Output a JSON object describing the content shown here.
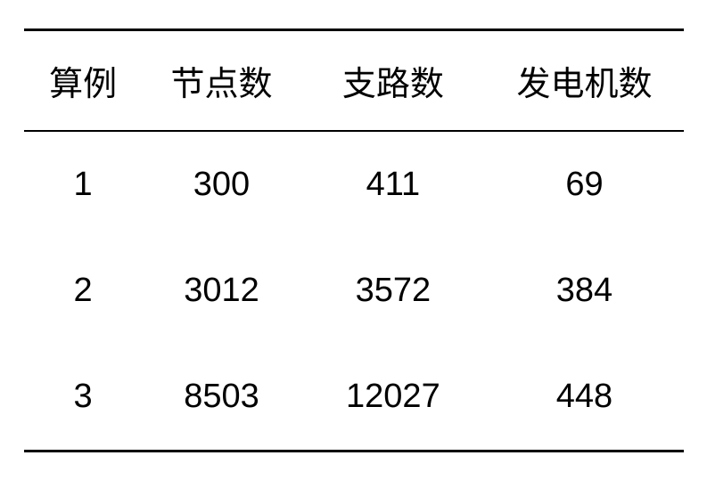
{
  "table": {
    "type": "table",
    "columns": [
      {
        "label": "算例",
        "width_pct": 18,
        "align": "center"
      },
      {
        "label": "节点数",
        "width_pct": 24,
        "align": "center"
      },
      {
        "label": "支路数",
        "width_pct": 28,
        "align": "center"
      },
      {
        "label": "发电机数",
        "width_pct": 30,
        "align": "center"
      }
    ],
    "rows": [
      {
        "case": "1",
        "nodes": "300",
        "branches": "411",
        "generators": "69"
      },
      {
        "case": "2",
        "nodes": "3012",
        "branches": "3572",
        "generators": "384"
      },
      {
        "case": "3",
        "nodes": "8503",
        "branches": "12027",
        "generators": "448"
      }
    ],
    "styling": {
      "background_color": "#ffffff",
      "text_color": "#000000",
      "border_top_width": 3,
      "border_header_bottom_width": 2,
      "border_bottom_width": 3,
      "border_color": "#000000",
      "header_fontsize": 38,
      "cell_fontsize": 38,
      "header_padding_v": 28,
      "cell_padding_v": 38,
      "font_family": "Microsoft YaHei"
    }
  }
}
